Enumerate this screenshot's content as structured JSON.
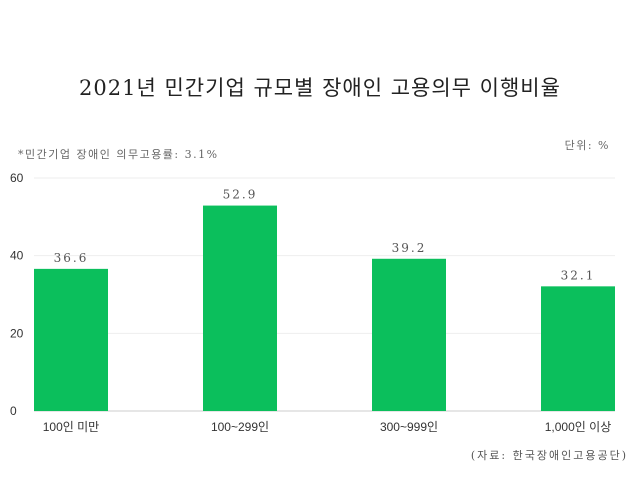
{
  "chart_data": {
    "type": "bar",
    "title": "2021년 민간기업 규모별 장애인 고용의무 이행비율",
    "note": "*민간기업 장애인 의무고용률: 3.1%",
    "unit": "단위: %",
    "source": "(자료: 한국장애인고용공단)",
    "categories": [
      "100인 미만",
      "100~299인",
      "300~999인",
      "1,000인 이상"
    ],
    "values": [
      36.6,
      52.9,
      39.2,
      32.1
    ],
    "data_labels": [
      "36.6",
      "52.9",
      "39.2",
      "32.1"
    ],
    "ylim": [
      0,
      60
    ],
    "yticks": [
      0,
      20,
      40,
      60
    ],
    "grid": true,
    "bar_color": "#0bbf5c",
    "xlabel": "",
    "ylabel": ""
  }
}
